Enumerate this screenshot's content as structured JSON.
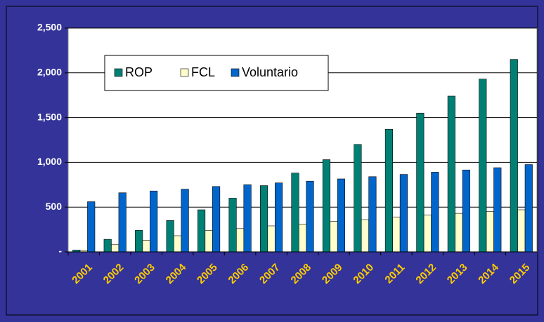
{
  "chart_data": {
    "type": "bar",
    "categories": [
      "2001",
      "2002",
      "2003",
      "2004",
      "2005",
      "2006",
      "2007",
      "2008",
      "2009",
      "2010",
      "2011",
      "2012",
      "2013",
      "2014",
      "2015"
    ],
    "series": [
      {
        "name": "ROP",
        "color": "#008074",
        "values": [
          20,
          140,
          240,
          350,
          470,
          600,
          740,
          880,
          1030,
          1200,
          1370,
          1550,
          1740,
          1930,
          2150
        ]
      },
      {
        "name": "FCL",
        "color": "#FFFFCC",
        "values": [
          15,
          80,
          130,
          180,
          240,
          260,
          290,
          310,
          340,
          360,
          390,
          410,
          430,
          450,
          470
        ]
      },
      {
        "name": "Voluntario",
        "color": "#0066CC",
        "values": [
          560,
          660,
          680,
          700,
          730,
          750,
          770,
          790,
          815,
          840,
          865,
          890,
          915,
          940,
          975
        ]
      }
    ],
    "ylim": [
      0,
      2500
    ],
    "yticks": [
      {
        "value": 0,
        "label": "-"
      },
      500,
      {
        "value": 1000,
        "label": "1,000"
      },
      {
        "value": 1500,
        "label": "1,500"
      },
      {
        "value": 2000,
        "label": "2,000"
      },
      {
        "value": 2500,
        "label": "2,500"
      }
    ],
    "grid": true,
    "legend": "upper left"
  }
}
